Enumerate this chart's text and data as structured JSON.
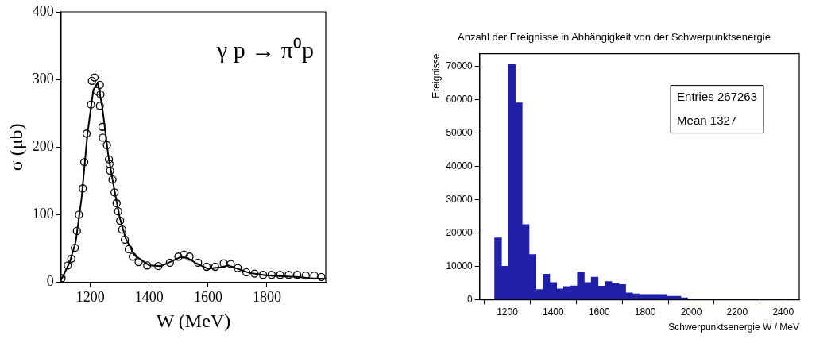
{
  "chart_data": [
    {
      "type": "scatter",
      "xlabel": "W (MeV)",
      "ylabel": "σ (μb)",
      "annotations": [
        "γ p → π⁰p"
      ],
      "xlim": [
        1100,
        2000
      ],
      "xticks": [
        1200,
        1400,
        1600,
        1800
      ],
      "ylim": [
        0,
        400
      ],
      "yticks": [
        0,
        100,
        200,
        300,
        400
      ],
      "grid": false,
      "legend": false,
      "series": [
        {
          "color": "#000000",
          "marker": "circle",
          "x": [
            1102,
            1123,
            1135,
            1147,
            1154,
            1161,
            1174,
            1179,
            1187,
            1202,
            1205,
            1214,
            1222,
            1232,
            1234,
            1232,
            1241,
            1242,
            1256,
            1263,
            1265,
            1267,
            1275,
            1282,
            1289,
            1294,
            1301,
            1308,
            1317,
            1330,
            1344,
            1364,
            1393,
            1431,
            1470,
            1499,
            1518,
            1537,
            1566,
            1595,
            1624,
            1653,
            1677,
            1701,
            1730,
            1758,
            1787,
            1816,
            1845,
            1874,
            1903,
            1932,
            1961,
            1985
          ],
          "values": [
            6,
            25,
            35,
            51,
            76,
            100,
            139,
            178,
            220,
            263,
            298,
            303,
            283,
            292,
            278,
            261,
            230,
            214,
            203,
            182,
            175,
            165,
            152,
            133,
            117,
            105,
            91,
            78,
            63,
            49,
            38,
            30,
            25,
            24,
            29,
            38,
            41,
            38,
            29,
            23,
            23,
            28,
            27,
            21,
            15,
            13,
            11,
            11,
            11,
            11,
            11,
            10,
            10,
            8
          ]
        },
        {
          "type": "line",
          "color": "#000000",
          "x": [
            1100,
            1130,
            1150,
            1170,
            1190,
            1210,
            1225,
            1240,
            1260,
            1280,
            1300,
            1320,
            1350,
            1400,
            1440,
            1480,
            1510,
            1530,
            1560,
            1600,
            1640,
            1670,
            1700,
            1740,
            1800,
            1850,
            1900,
            1950,
            2000
          ],
          "values": [
            3,
            30,
            60,
            125,
            220,
            285,
            295,
            260,
            190,
            140,
            95,
            65,
            40,
            25,
            24,
            32,
            38,
            36,
            28,
            20,
            22,
            25,
            20,
            14,
            10,
            9,
            8,
            6,
            5
          ]
        }
      ]
    },
    {
      "type": "histogram",
      "title": "Anzahl der Ereignisse in Abhängigkeit von der Schwerpunktsenergie",
      "xlabel": "Schwerpunktsenergie W / MeV",
      "ylabel": "Ereignisse",
      "annotations": [
        "Entries 267263",
        "Mean 1327"
      ],
      "color": "#1f1fa8",
      "xlim": [
        1080,
        2470
      ],
      "xticks": [
        1200,
        1400,
        1600,
        1800,
        2000,
        2200,
        2400
      ],
      "ylim": [
        0,
        73800
      ],
      "yticks": [
        0,
        10000,
        20000,
        30000,
        40000,
        50000,
        60000,
        70000
      ],
      "grid": false,
      "legend": false,
      "bins": [
        1145,
        1175,
        1205,
        1235,
        1265,
        1295,
        1325,
        1355,
        1385,
        1415,
        1445,
        1475,
        1505,
        1535,
        1565,
        1595,
        1625,
        1655,
        1685,
        1715,
        1745,
        1775,
        1805,
        1835,
        1865,
        1895,
        1925,
        1955,
        1985,
        2015,
        2045,
        2075,
        2105,
        2135,
        2165,
        2195,
        2225,
        2255,
        2285,
        2315,
        2345,
        2375,
        2405
      ],
      "values": [
        18500,
        10000,
        70500,
        59000,
        22500,
        13500,
        3000,
        7600,
        5100,
        3200,
        3900,
        4100,
        8300,
        5100,
        6700,
        4000,
        5400,
        4800,
        4500,
        2000,
        1700,
        1500,
        1500,
        1500,
        1500,
        1000,
        1000,
        500,
        100,
        100,
        100,
        100,
        100,
        100,
        100,
        100,
        100,
        100,
        100,
        100,
        100,
        100
      ]
    }
  ]
}
